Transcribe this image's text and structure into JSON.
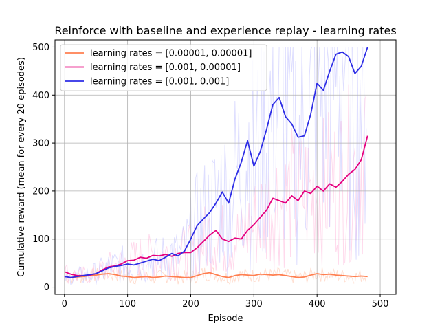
{
  "chart_data": {
    "type": "line",
    "title": "Reinforce with baseline and experience replay - learning rates",
    "xlabel": "Episode",
    "ylabel": "Cumulative reward (mean for every 20 episodes)",
    "xlim": [
      -15,
      525
    ],
    "ylim": [
      -15,
      515
    ],
    "x_ticks": [
      0,
      100,
      200,
      300,
      400,
      500
    ],
    "y_ticks": [
      0,
      100,
      200,
      300,
      400,
      500
    ],
    "grid": true,
    "legend_position": "top-left",
    "series": [
      {
        "name": "learning rates = [0.00001, 0.00001]",
        "color": "#ff7f50",
        "x": [
          0,
          10,
          20,
          30,
          40,
          50,
          60,
          70,
          80,
          90,
          100,
          110,
          120,
          130,
          140,
          150,
          160,
          170,
          180,
          190,
          200,
          210,
          220,
          230,
          240,
          250,
          260,
          270,
          280,
          290,
          300,
          310,
          320,
          330,
          340,
          350,
          360,
          370,
          380,
          390,
          400,
          410,
          420,
          430,
          440,
          450,
          460,
          470,
          480
        ],
        "y": [
          22,
          20,
          21,
          22,
          24,
          25,
          27,
          28,
          26,
          23,
          22,
          20,
          21,
          22,
          20,
          21,
          23,
          22,
          21,
          20,
          20,
          24,
          28,
          30,
          26,
          22,
          20,
          24,
          26,
          25,
          24,
          27,
          26,
          25,
          26,
          24,
          22,
          20,
          21,
          25,
          28,
          26,
          27,
          25,
          24,
          23,
          22,
          23,
          22
        ]
      },
      {
        "name": "learning rates = [0.001, 0.00001]",
        "color": "#e6007e",
        "x": [
          0,
          10,
          20,
          30,
          40,
          50,
          60,
          70,
          80,
          90,
          100,
          110,
          120,
          130,
          140,
          150,
          160,
          170,
          180,
          190,
          200,
          210,
          220,
          230,
          240,
          250,
          260,
          270,
          280,
          290,
          300,
          310,
          320,
          330,
          340,
          350,
          360,
          370,
          380,
          390,
          400,
          410,
          420,
          430,
          440,
          450,
          460,
          470,
          480
        ],
        "y": [
          32,
          27,
          24,
          24,
          25,
          28,
          36,
          42,
          44,
          48,
          55,
          56,
          62,
          60,
          66,
          65,
          68,
          64,
          70,
          72,
          72,
          82,
          95,
          108,
          118,
          100,
          95,
          102,
          100,
          118,
          130,
          145,
          160,
          185,
          180,
          175,
          190,
          180,
          200,
          195,
          210,
          200,
          215,
          208,
          220,
          235,
          245,
          265,
          315
        ]
      },
      {
        "name": "learning rates = [0.001, 0.001]",
        "color": "#2d2de6",
        "x": [
          0,
          10,
          20,
          30,
          40,
          50,
          60,
          70,
          80,
          90,
          100,
          110,
          120,
          130,
          140,
          150,
          160,
          170,
          180,
          190,
          200,
          210,
          220,
          230,
          240,
          250,
          260,
          270,
          280,
          290,
          300,
          310,
          320,
          330,
          340,
          350,
          360,
          370,
          380,
          390,
          400,
          410,
          420,
          430,
          440,
          450,
          460,
          470,
          480
        ],
        "y": [
          22,
          20,
          22,
          24,
          26,
          28,
          34,
          40,
          43,
          45,
          48,
          46,
          50,
          54,
          58,
          55,
          62,
          70,
          65,
          75,
          100,
          128,
          142,
          155,
          175,
          198,
          175,
          225,
          260,
          305,
          252,
          282,
          328,
          380,
          395,
          355,
          340,
          312,
          315,
          360,
          425,
          410,
          450,
          485,
          490,
          480,
          445,
          460,
          500
        ]
      }
    ]
  }
}
